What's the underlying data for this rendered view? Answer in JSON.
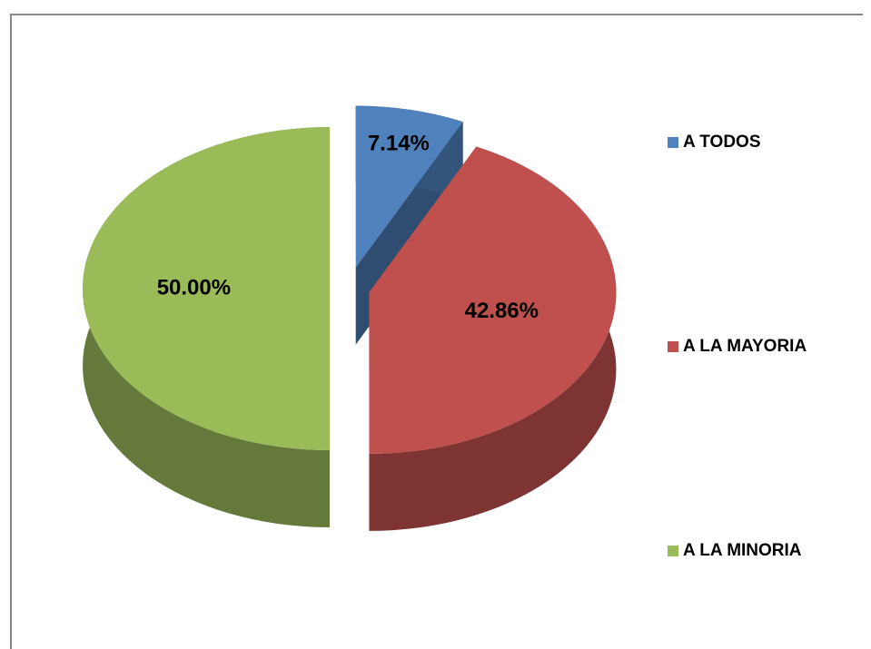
{
  "chart_data": {
    "type": "pie3d",
    "categories": [
      "A TODOS",
      "A LA MAYORIA",
      "A LA MINORIA"
    ],
    "values": [
      7.14,
      42.86,
      50.0
    ],
    "value_labels": [
      "7.14%",
      "42.86%",
      "50.00%"
    ],
    "colors": [
      "#4f81bd",
      "#c0504d",
      "#9bbb59"
    ],
    "legend": "right"
  }
}
